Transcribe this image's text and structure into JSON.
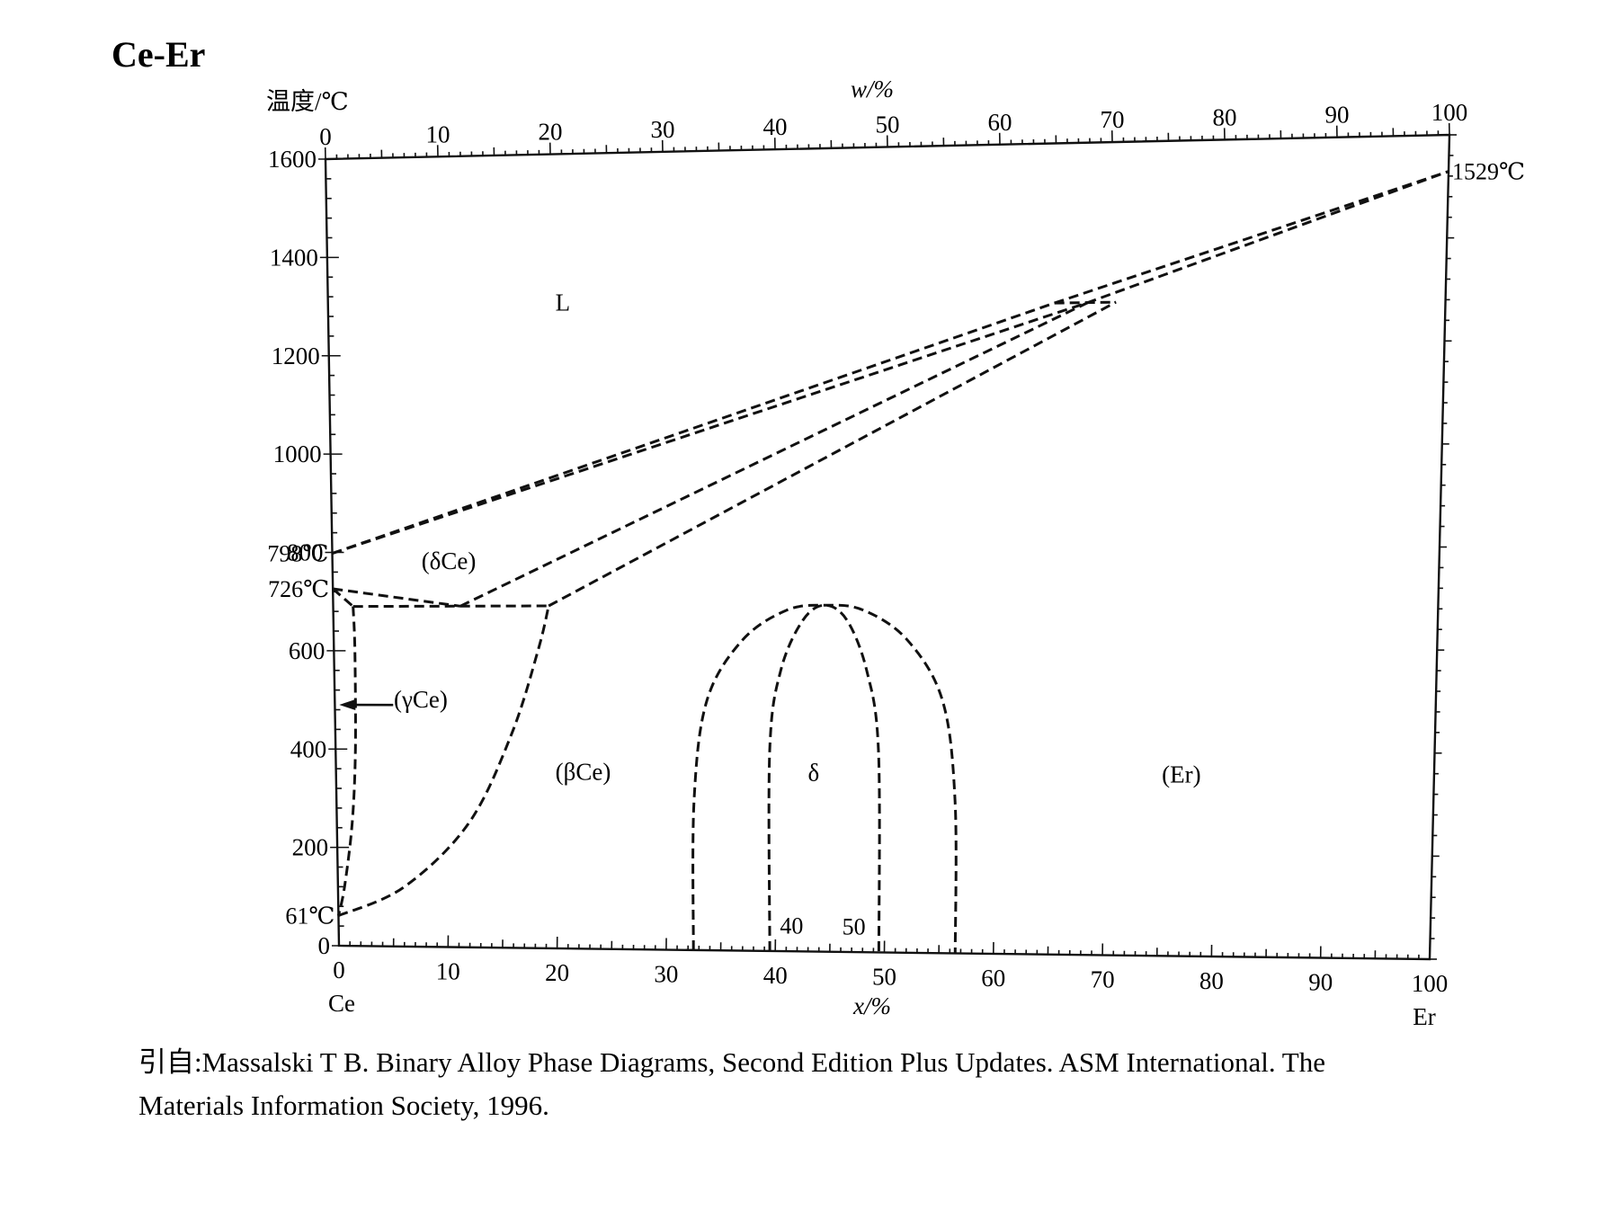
{
  "chart_data": {
    "type": "line",
    "title": "Ce-Er",
    "subtitle": "",
    "ylabel": "温度/℃",
    "xlabel": "x/%",
    "x2label": "w/%",
    "xlim": [
      0,
      100
    ],
    "ylim": [
      0,
      1600
    ],
    "y_ticks": [
      0,
      200,
      400,
      600,
      800,
      1000,
      1200,
      1400,
      1600
    ],
    "x_ticks": [
      0,
      10,
      20,
      30,
      40,
      50,
      60,
      70,
      80,
      90,
      100
    ],
    "x2_ticks": [
      0,
      10,
      20,
      30,
      40,
      50,
      60,
      70,
      80,
      90,
      100
    ],
    "endpoint_left": "Ce",
    "endpoint_right": "Er",
    "grid": false,
    "temperature_labels": [
      {
        "text": "1529℃",
        "x": 100,
        "y": 1529
      },
      {
        "text": "798℃",
        "x": 0,
        "y": 798
      },
      {
        "text": "726℃",
        "x": 0,
        "y": 726
      },
      {
        "text": "61℃",
        "x": 0,
        "y": 61
      }
    ],
    "regions": [
      {
        "text": "L",
        "x": 21,
        "y": 1285
      },
      {
        "text": "(δCe)",
        "x": 10.5,
        "y": 765
      },
      {
        "text": "(γCe)",
        "x": 7.8,
        "y": 485
      },
      {
        "text": "(βCe)",
        "x": 22.5,
        "y": 340
      },
      {
        "text": "δ",
        "x": 43.5,
        "y": 340
      },
      {
        "text": "(Er)",
        "x": 77,
        "y": 340
      }
    ],
    "annotations": [
      {
        "text": "40",
        "x": 41.5,
        "y": 35
      },
      {
        "text": "50",
        "x": 47.2,
        "y": 35
      }
    ],
    "series": [
      {
        "points": [
          [
            0,
            798
          ],
          [
            65,
            1285
          ],
          [
            100,
            1529
          ]
        ]
      },
      {
        "points": [
          [
            0,
            798
          ],
          [
            68,
            1285
          ],
          [
            100,
            1529
          ]
        ]
      },
      {
        "points": [
          [
            11.5,
            690
          ],
          [
            68,
            1285
          ]
        ]
      },
      {
        "points": [
          [
            19.5,
            690
          ],
          [
            70.5,
            1285
          ]
        ]
      },
      {
        "points": [
          [
            65,
            1285
          ],
          [
            70.5,
            1285
          ]
        ]
      },
      {
        "points": [
          [
            0,
            726
          ],
          [
            11.5,
            690
          ]
        ]
      },
      {
        "points": [
          [
            0,
            726
          ],
          [
            1.8,
            690
          ]
        ]
      },
      {
        "points": [
          [
            1.8,
            690
          ],
          [
            19.5,
            690
          ]
        ]
      },
      {
        "points": [
          [
            1.8,
            690
          ],
          [
            1.9,
            600
          ],
          [
            1.8,
            400
          ],
          [
            1.4,
            250
          ],
          [
            0.6,
            120
          ],
          [
            0,
            61
          ]
        ]
      },
      {
        "points": [
          [
            0,
            61
          ],
          [
            6,
            120
          ],
          [
            12,
            250
          ],
          [
            16,
            430
          ],
          [
            18.5,
            600
          ],
          [
            19.5,
            690
          ]
        ]
      },
      {
        "points": [
          [
            32.5,
            0
          ],
          [
            32.6,
            300
          ],
          [
            33.8,
            500
          ],
          [
            37,
            620
          ],
          [
            41,
            680
          ],
          [
            44.5,
            690
          ],
          [
            48,
            680
          ],
          [
            52,
            620
          ],
          [
            55.2,
            500
          ],
          [
            56.4,
            300
          ],
          [
            56.5,
            0
          ]
        ]
      },
      {
        "points": [
          [
            39.5,
            0
          ],
          [
            39.5,
            400
          ],
          [
            40.5,
            560
          ],
          [
            42.5,
            660
          ],
          [
            44.5,
            690
          ],
          [
            46.5,
            660
          ],
          [
            48.3,
            560
          ],
          [
            49.4,
            400
          ],
          [
            49.5,
            0
          ]
        ]
      }
    ],
    "arrow": {
      "from": [
        5.3,
        490
      ],
      "to": [
        0.4,
        490
      ]
    }
  },
  "caption": {
    "line1": "引自:Massalski T B. Binary Alloy Phase Diagrams, Second Edition Plus Updates. ASM International. The",
    "line2": "Materials Information Society, 1996."
  }
}
